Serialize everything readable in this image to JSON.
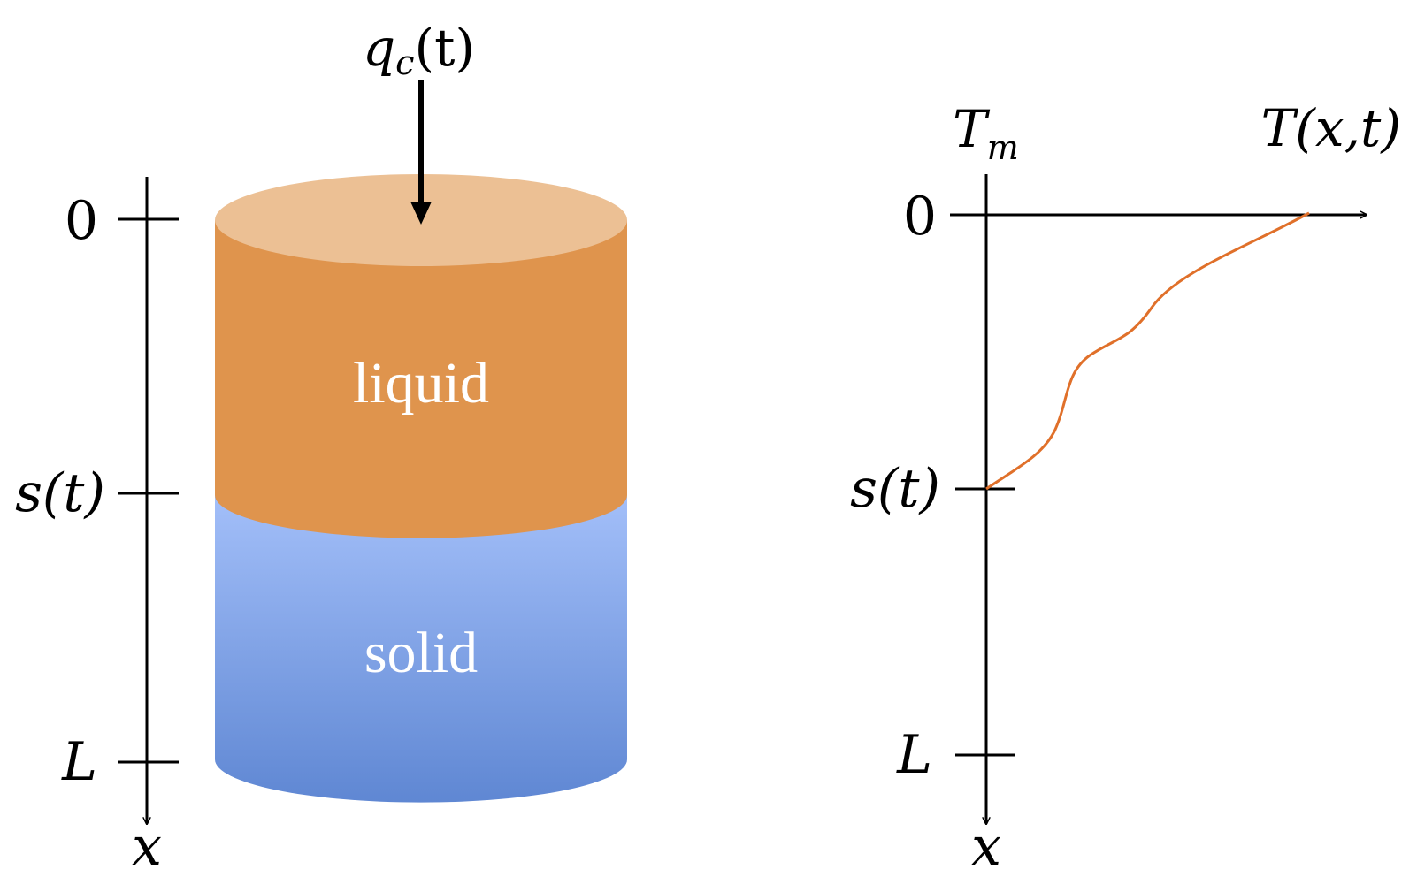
{
  "colors": {
    "liquid": "#df944d",
    "liquid_top": "#ecc094",
    "solid_top": "#a3bff9",
    "solid_bottom": "#5f87d3",
    "temperature_curve": "#e0702a",
    "ink": "#000000",
    "phase_text": "#ffffff"
  },
  "left_diagram": {
    "heat_flux": {
      "var": "q",
      "sub": "c",
      "rest": "(t)"
    },
    "phase_labels": {
      "liquid": "liquid",
      "solid": "solid"
    },
    "axis": {
      "variable": "x",
      "ticks": [
        {
          "kind": "zero",
          "label": "0"
        },
        {
          "kind": "interface",
          "label": "s(t)"
        },
        {
          "kind": "length",
          "label": "L"
        }
      ]
    }
  },
  "right_diagram": {
    "vertical_axis_top": {
      "var": "T",
      "sub": "m"
    },
    "horizontal_axis_label": "T(x,t)",
    "vertical_axis_variable": "x",
    "ticks": [
      {
        "kind": "zero",
        "label": "0"
      },
      {
        "kind": "interface",
        "label": "s(t)"
      },
      {
        "kind": "length",
        "label": "L"
      }
    ]
  }
}
